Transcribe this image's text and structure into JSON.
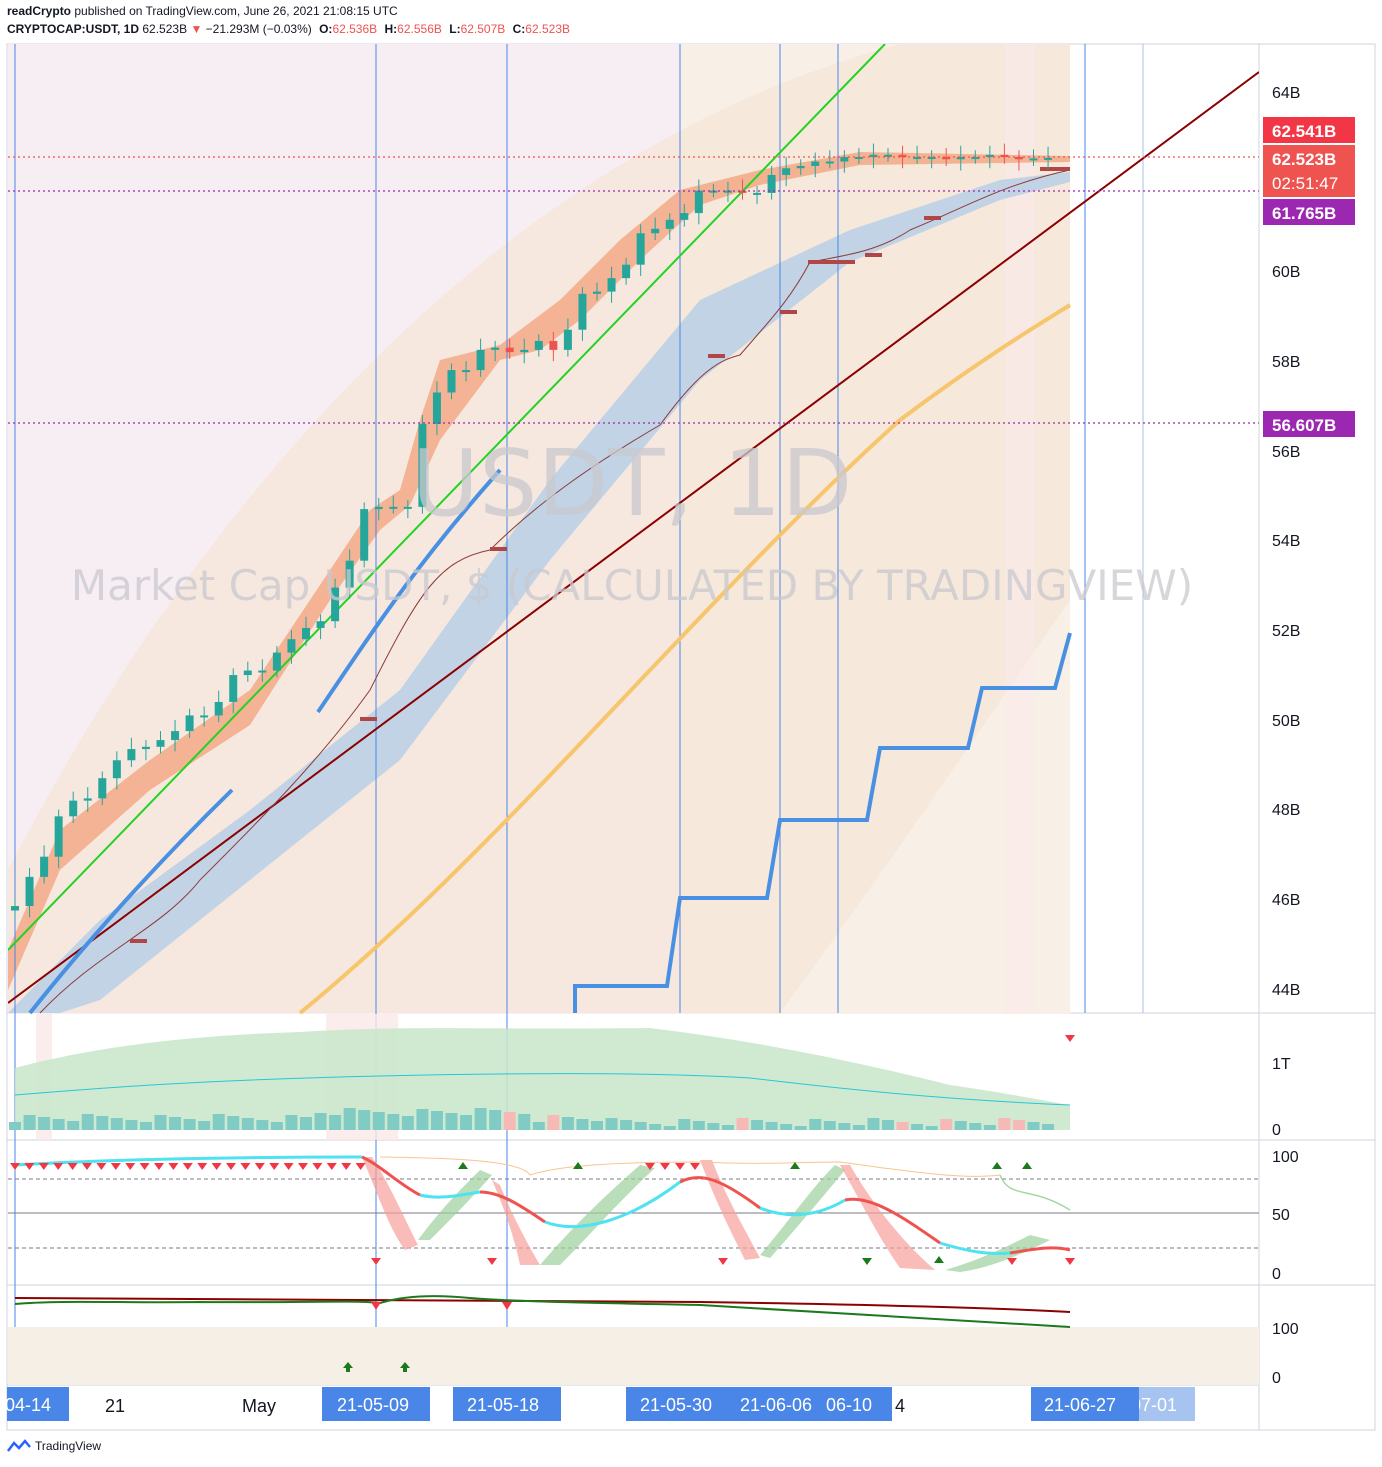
{
  "header": {
    "publisher": "readCrypto",
    "published_text": "published on TradingView.com, June 26, 2021 21:08:15 UTC",
    "symbol": "CRYPTOCAP:USDT, 1D",
    "last": "62.523B",
    "change": "−21.293M (−0.03%)",
    "open_label": "O:",
    "open": "62.536B",
    "high_label": "H:",
    "high": "62.556B",
    "low_label": "L:",
    "low": "62.507B",
    "close_label": "C:",
    "close": "62.523B"
  },
  "watermark": {
    "title": "USDT, 1D",
    "subtitle": "Market Cap USDT, $ (CALCULATED BY TRADINGVIEW)"
  },
  "footer": {
    "brand": "TradingView"
  },
  "colors": {
    "up": "#26a69a",
    "down": "#ef5350",
    "purple": "#9c27b0",
    "date_tag": "#4a86e8",
    "green_line": "#22d322",
    "dark_red_line": "#8b0000",
    "orange_line": "#f7c56b",
    "blue_line": "#4a90e2"
  },
  "chart_data": {
    "type": "candlestick",
    "x_tick_labels": [
      "04-14",
      "21",
      "May",
      "21-05-09",
      "21-05-18",
      "21-05-30",
      "21-06-06",
      "06-10",
      "4",
      "21-06-27",
      "07-01"
    ],
    "price_axis": {
      "ticks": [
        "64B",
        "60B",
        "58B",
        "56B",
        "54B",
        "52B",
        "50B",
        "48B",
        "46B",
        "44B"
      ],
      "ylim": [
        43.5,
        65
      ]
    },
    "price_labels": [
      {
        "text": "62.541B",
        "color": "#f23645"
      },
      {
        "text": "62.523B",
        "color": "#ef5350"
      },
      {
        "text": "02:51:47",
        "color": "#ef5350"
      },
      {
        "text": "61.765B",
        "color": "#9c27b0"
      },
      {
        "text": "56.607B",
        "color": "#9c27b0"
      }
    ],
    "horizontal_levels": [
      62.523,
      61.765,
      56.607
    ],
    "candles_close": [
      45.85,
      46.5,
      46.95,
      47.85,
      48.2,
      48.25,
      48.7,
      49.1,
      49.35,
      49.4,
      49.55,
      49.75,
      50.1,
      50.1,
      50.4,
      51.0,
      51.1,
      51.1,
      51.5,
      51.8,
      52.05,
      52.2,
      52.95,
      53.55,
      54.7,
      54.75,
      54.75,
      54.75,
      56.6,
      57.3,
      57.8,
      57.8,
      58.25,
      58.3,
      58.2,
      58.25,
      58.45,
      58.25,
      58.7,
      59.5,
      59.55,
      59.85,
      60.15,
      60.85,
      60.95,
      61.15,
      61.3,
      61.8,
      61.8,
      61.8,
      61.75,
      61.75,
      62.15,
      62.3,
      62.35,
      62.45,
      62.45,
      62.55,
      62.55,
      62.6,
      62.6,
      62.55,
      62.55,
      62.55,
      62.5,
      62.55,
      62.55,
      62.6,
      62.55,
      62.5,
      62.52,
      62.53
    ],
    "volume_axis": {
      "ticks": [
        "1T",
        "0"
      ]
    },
    "oscillator_axis": {
      "ticks": [
        "100",
        "50",
        "0"
      ]
    },
    "lower_axis": {
      "ticks": [
        "100",
        "0"
      ]
    }
  }
}
